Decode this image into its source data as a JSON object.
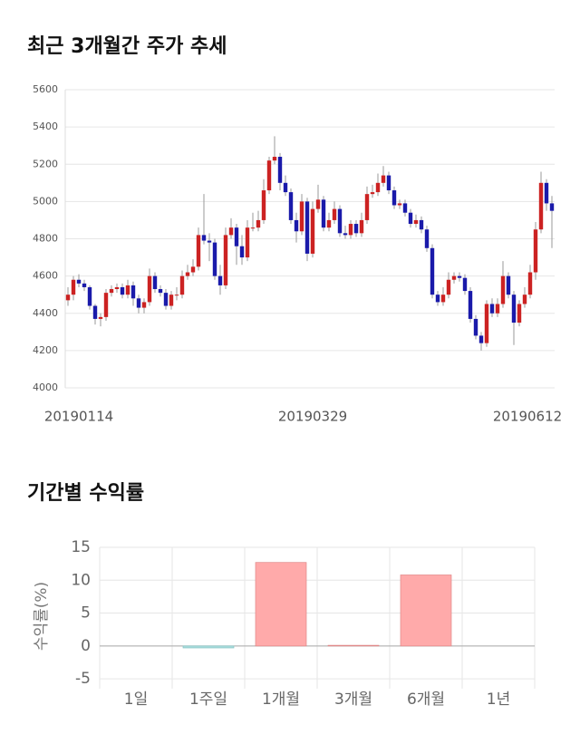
{
  "chart_data": [
    {
      "type": "candlestick",
      "title": "최근 3개월간 주가 추세",
      "x": [
        null,
        null,
        "20190114",
        null,
        null,
        null,
        null,
        null,
        null,
        null,
        null,
        null,
        null,
        null,
        null,
        null,
        null,
        null,
        null,
        null,
        null,
        null,
        null,
        null,
        null,
        null,
        null,
        null,
        null,
        null,
        null,
        null,
        null,
        null,
        null,
        null,
        null,
        null,
        null,
        null,
        null,
        null,
        null,
        null,
        null,
        "20190329",
        null,
        null,
        null,
        null,
        null,
        null,
        null,
        null,
        null,
        null,
        null,
        null,
        null,
        null,
        null,
        null,
        null,
        null,
        null,
        null,
        null,
        null,
        null,
        null,
        null,
        null,
        null,
        null,
        null,
        null,
        null,
        null,
        null,
        null,
        null,
        null,
        null,
        null,
        null,
        null,
        "20190612",
        null,
        null,
        null
      ],
      "open": [
        4470,
        4500,
        4580,
        4560,
        4540,
        4440,
        4370,
        4380,
        4510,
        4530,
        4540,
        4500,
        4550,
        4480,
        4430,
        4460,
        4600,
        4530,
        4510,
        4440,
        4500,
        4500,
        4600,
        4620,
        4650,
        4820,
        4790,
        4780,
        4600,
        4550,
        4820,
        4860,
        4760,
        4700,
        4860,
        4860,
        4900,
        5060,
        5220,
        5240,
        5100,
        5050,
        4900,
        4840,
        5000,
        4720,
        4960,
        5010,
        4860,
        4900,
        4960,
        4830,
        4820,
        4880,
        4830,
        4900,
        5040,
        5050,
        5100,
        5140,
        5060,
        4980,
        4990,
        4940,
        4880,
        4900,
        4850,
        4750,
        4500,
        4460,
        4500,
        4580,
        4600,
        4590,
        4520,
        4370,
        4280,
        4240,
        4450,
        4400,
        4450,
        4600,
        4500,
        4350,
        4450,
        4500,
        4620,
        4850,
        5100,
        4990
      ],
      "high": [
        4540,
        4600,
        4610,
        4580,
        4550,
        4450,
        4400,
        4530,
        4550,
        4560,
        4560,
        4580,
        4570,
        4500,
        4480,
        4640,
        4620,
        4550,
        4530,
        4520,
        4540,
        4630,
        4660,
        4690,
        4860,
        5040,
        4830,
        4800,
        4660,
        4860,
        4910,
        4880,
        4820,
        4900,
        4940,
        4950,
        5120,
        5240,
        5350,
        5260,
        5140,
        5070,
        4940,
        5040,
        5020,
        5000,
        5090,
        5030,
        4940,
        5000,
        4980,
        4870,
        4900,
        4900,
        4940,
        5080,
        5090,
        5150,
        5190,
        5160,
        5080,
        5010,
        5010,
        4960,
        4930,
        4920,
        4870,
        4770,
        4520,
        4540,
        4620,
        4620,
        4620,
        4610,
        4540,
        4390,
        4300,
        4470,
        4480,
        4480,
        4680,
        4620,
        4520,
        4470,
        4540,
        4660,
        4890,
        5160,
        5120,
        5030
      ],
      "low": [
        4440,
        4470,
        4540,
        4520,
        4420,
        4340,
        4330,
        4360,
        4490,
        4510,
        4480,
        4480,
        4440,
        4400,
        4400,
        4440,
        4510,
        4490,
        4420,
        4420,
        4470,
        4480,
        4580,
        4600,
        4630,
        4770,
        4680,
        4580,
        4500,
        4530,
        4800,
        4660,
        4660,
        4680,
        4840,
        4840,
        4880,
        5040,
        5200,
        5060,
        5030,
        4880,
        4780,
        4820,
        4680,
        4700,
        4940,
        4840,
        4840,
        4880,
        4810,
        4800,
        4800,
        4810,
        4810,
        4880,
        5020,
        5030,
        5080,
        5040,
        4960,
        4960,
        4920,
        4860,
        4860,
        4830,
        4730,
        4480,
        4440,
        4440,
        4480,
        4560,
        4570,
        4500,
        4350,
        4260,
        4200,
        4220,
        4380,
        4380,
        4430,
        4480,
        4230,
        4330,
        4430,
        4480,
        4580,
        4830,
        4950,
        4750
      ],
      "close": [
        4500,
        4580,
        4560,
        4540,
        4440,
        4370,
        4380,
        4510,
        4530,
        4540,
        4500,
        4550,
        4480,
        4430,
        4460,
        4600,
        4530,
        4510,
        4440,
        4500,
        4500,
        4600,
        4620,
        4650,
        4820,
        4790,
        4780,
        4600,
        4550,
        4820,
        4860,
        4760,
        4700,
        4860,
        4860,
        4900,
        5060,
        5220,
        5240,
        5100,
        5050,
        4900,
        4840,
        5000,
        4720,
        4960,
        5010,
        4860,
        4900,
        4960,
        4830,
        4820,
        4880,
        4830,
        4900,
        5040,
        5050,
        5100,
        5140,
        5060,
        4980,
        4990,
        4940,
        4880,
        4900,
        4850,
        4750,
        4500,
        4460,
        4500,
        4580,
        4600,
        4590,
        4520,
        4370,
        4280,
        4240,
        4450,
        4400,
        4450,
        4600,
        4500,
        4350,
        4450,
        4500,
        4620,
        4850,
        5100,
        4990,
        4950
      ],
      "up_color": "#cc2222",
      "down_color": "#1a1aaa",
      "ylim": [
        4000,
        5600
      ],
      "yticks": [
        4000,
        4200,
        4400,
        4600,
        4800,
        5000,
        5200,
        5400,
        5600
      ],
      "grid": true
    },
    {
      "type": "bar",
      "title": "기간별 수익률",
      "y_label": "수익률(%)",
      "categories": [
        "1일",
        "1주일",
        "1개월",
        "3개월",
        "6개월",
        "1년"
      ],
      "values": [
        0,
        -0.3,
        12.7,
        0.1,
        10.8,
        0
      ],
      "positive_color": "#ffaaaa",
      "negative_color": "#a8dcdc",
      "ylim": [
        -6.5,
        15
      ],
      "yticks": [
        15,
        10,
        5,
        0,
        -5
      ],
      "grid": true
    }
  ]
}
